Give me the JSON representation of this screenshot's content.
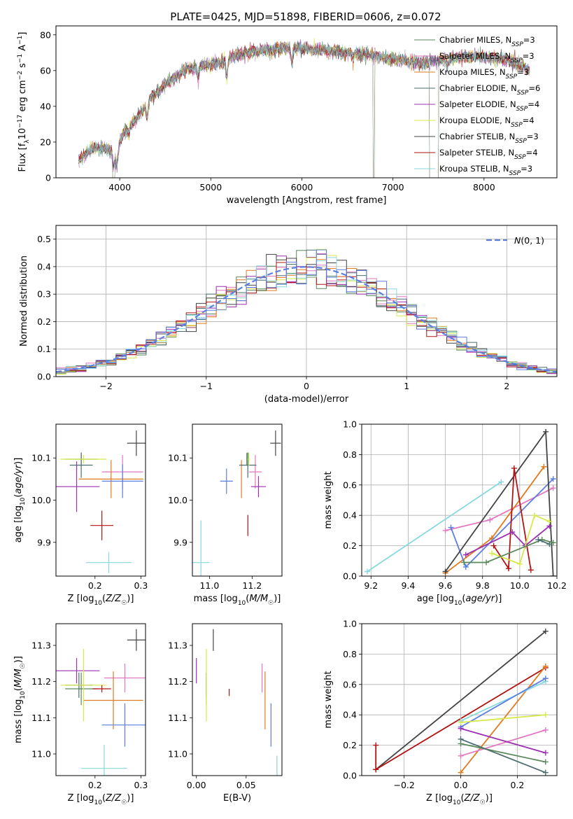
{
  "title": "PLATE=0425, MJD=51898, FIBERID=0606, z=0.072",
  "colors": {
    "Chabrier MILES": "#5a8a5a",
    "Salpeter MILES": "#e377c2",
    "Kroupa MILES": "#e07b1f",
    "Chabrier ELODIE": "#4a6e6e",
    "Salpeter ELODIE": "#9b2fb0",
    "Kroupa ELODIE": "#d7e84a",
    "Chabrier STELIB": "#444444",
    "Salpeter STELIB": "#b21414",
    "Kroupa STELIB": "#88d8e0",
    "Blue": "#5b7fe0",
    "Normal": "#5b7fe0"
  },
  "chart_data": [
    {
      "type": "line",
      "panel": "spectrum",
      "xlabel": "wavelength [Angstrom, rest frame]",
      "ylabel": "Flux [f_λ 10^-17 erg cm^-2 s^-1 A^-1]",
      "xlim": [
        3300,
        8800
      ],
      "ylim": [
        0,
        85
      ],
      "xticks": [
        4000,
        5000,
        6000,
        7000,
        8000
      ],
      "yticks": [
        0,
        20,
        40,
        60,
        80
      ],
      "legend_position": "top-right",
      "legend": [
        {
          "name": "Chabrier MILES",
          "suffix": "3"
        },
        {
          "name": "Salpeter MILES",
          "suffix": "3"
        },
        {
          "name": "Kroupa MILES",
          "suffix": "3"
        },
        {
          "name": "Chabrier ELODIE",
          "suffix": "6"
        },
        {
          "name": "Salpeter ELODIE",
          "suffix": "4"
        },
        {
          "name": "Kroupa ELODIE",
          "suffix": "4"
        },
        {
          "name": "Chabrier STELIB",
          "suffix": "3"
        },
        {
          "name": "Salpeter STELIB",
          "suffix": "4"
        },
        {
          "name": "Kroupa STELIB",
          "suffix": "3"
        }
      ],
      "continuum": [
        [
          3550,
          10
        ],
        [
          3700,
          17
        ],
        [
          3850,
          16
        ],
        [
          3950,
          14
        ],
        [
          4050,
          26
        ],
        [
          4200,
          34
        ],
        [
          4350,
          45
        ],
        [
          4500,
          52
        ],
        [
          4700,
          60
        ],
        [
          4900,
          63
        ],
        [
          5100,
          64
        ],
        [
          5300,
          69
        ],
        [
          5500,
          71
        ],
        [
          5700,
          72
        ],
        [
          5900,
          73
        ],
        [
          6100,
          72
        ],
        [
          6300,
          71
        ],
        [
          6500,
          70
        ],
        [
          6700,
          69
        ],
        [
          6900,
          67
        ],
        [
          7100,
          66
        ],
        [
          7300,
          64
        ],
        [
          7500,
          66
        ],
        [
          7700,
          67
        ],
        [
          7900,
          68
        ],
        [
          8100,
          67
        ],
        [
          8300,
          65
        ],
        [
          8500,
          60
        ]
      ],
      "absorption_features": [
        [
          3934,
          8
        ],
        [
          3968,
          9
        ],
        [
          4102,
          4
        ],
        [
          4300,
          8
        ],
        [
          4861,
          6
        ],
        [
          5175,
          10
        ],
        [
          5890,
          10
        ],
        [
          6563,
          3
        ],
        [
          7600,
          4
        ]
      ],
      "model_cutoffs": [
        [
          3920,
          3950
        ],
        [
          6780,
          6800
        ],
        [
          7400,
          7500
        ]
      ]
    },
    {
      "type": "line",
      "panel": "residuals",
      "xlabel": "(data-model)/error",
      "ylabel": "Normed distribution",
      "xlim": [
        -2.5,
        2.5
      ],
      "ylim": [
        0,
        0.55
      ],
      "xticks": [
        -2,
        -1,
        0,
        1,
        2
      ],
      "yticks": [
        0.0,
        0.1,
        0.2,
        0.3,
        0.4,
        0.5
      ],
      "grid": true,
      "legend_position": "top-right",
      "legend_label": "N(0,1)",
      "bin_width": 0.1
    },
    {
      "type": "scatter",
      "panel": "age-vs-Z",
      "xlabel": "Z [log10(Z/Z_sun)]",
      "ylabel": "age  [log10(age/yr)]",
      "xlim": [
        0.115,
        0.31
      ],
      "ylim": [
        9.82,
        10.18
      ],
      "xticks": [
        0.2,
        0.3
      ],
      "yticks": [
        9.9,
        10.0,
        10.1
      ],
      "points": [
        {
          "series": "Chabrier MILES",
          "x": 0.17,
          "y": 10.097,
          "xe": 0.035,
          "ye": 0.015
        },
        {
          "series": "Salpeter MILES",
          "x": 0.26,
          "y": 10.067,
          "xe": 0.045,
          "ye": 0.04
        },
        {
          "series": "Kroupa MILES",
          "x": 0.235,
          "y": 10.05,
          "xe": 0.07,
          "ye": 0.045
        },
        {
          "series": "Chabrier ELODIE",
          "x": 0.17,
          "y": 10.083,
          "xe": 0.025,
          "ye": 0.03
        },
        {
          "series": "Salpeter ELODIE",
          "x": 0.16,
          "y": 10.032,
          "xe": 0.05,
          "ye": 0.06
        },
        {
          "series": "Kroupa ELODIE",
          "x": 0.175,
          "y": 10.097,
          "xe": 0.05,
          "ye": 0.01
        },
        {
          "series": "Chabrier STELIB",
          "x": 0.29,
          "y": 10.135,
          "xe": 0.02,
          "ye": 0.03
        },
        {
          "series": "Salpeter STELIB",
          "x": 0.215,
          "y": 9.94,
          "xe": 0.025,
          "ye": 0.035
        },
        {
          "series": "Kroupa STELIB",
          "x": 0.23,
          "y": 9.852,
          "xe": 0.05,
          "ye": 0.025
        },
        {
          "series": "Blue",
          "x": 0.26,
          "y": 10.045,
          "xe": 0.045,
          "ye": 0.04
        }
      ]
    },
    {
      "type": "scatter",
      "panel": "age-vs-mass",
      "xlabel": "mass [log10(M/M_sun)]",
      "ylabel": "",
      "xlim": [
        10.92,
        11.34
      ],
      "ylim": [
        9.82,
        10.18
      ],
      "xticks": [
        11.0,
        11.2
      ],
      "yticks": [
        9.9,
        10.0,
        10.1
      ],
      "points": [
        {
          "series": "Chabrier MILES",
          "x": 11.175,
          "y": 10.097,
          "xe": 0.0,
          "ye": 0.015
        },
        {
          "series": "Salpeter MILES",
          "x": 11.215,
          "y": 10.067,
          "xe": 0.03,
          "ye": 0.04
        },
        {
          "series": "Kroupa MILES",
          "x": 11.15,
          "y": 10.05,
          "xe": 0.0,
          "ye": 0.045
        },
        {
          "series": "Chabrier ELODIE",
          "x": 11.18,
          "y": 10.083,
          "xe": 0.04,
          "ye": 0.03
        },
        {
          "series": "Salpeter ELODIE",
          "x": 11.23,
          "y": 10.032,
          "xe": 0.035,
          "ye": 0.025
        },
        {
          "series": "Kroupa ELODIE",
          "x": 11.185,
          "y": 10.097,
          "xe": 0.005,
          "ye": 0.015
        },
        {
          "series": "Chabrier STELIB",
          "x": 11.31,
          "y": 10.135,
          "xe": 0.025,
          "ye": 0.03
        },
        {
          "series": "Salpeter STELIB",
          "x": 11.18,
          "y": 9.94,
          "xe": 0.0,
          "ye": 0.025
        },
        {
          "series": "Kroupa STELIB",
          "x": 10.96,
          "y": 9.852,
          "xe": 0.04,
          "ye": 0.1
        },
        {
          "series": "Blue",
          "x": 11.08,
          "y": 10.045,
          "xe": 0.03,
          "ye": 0.03
        }
      ]
    },
    {
      "type": "line",
      "panel": "mass-weight-vs-age",
      "xlabel": "age  [log10(age/yr)]",
      "ylabel": "mass weight",
      "xlim": [
        9.15,
        10.2
      ],
      "ylim": [
        0,
        1
      ],
      "xticks": [
        9.2,
        9.4,
        9.6,
        9.8,
        10.0,
        10.2
      ],
      "yticks": [
        0.0,
        0.2,
        0.4,
        0.6,
        0.8,
        1.0
      ],
      "grid": true,
      "series": [
        {
          "name": "Kroupa STELIB",
          "points": [
            [
              9.18,
              0.03
            ],
            [
              9.9,
              0.62
            ]
          ]
        },
        {
          "name": "Salpeter MILES",
          "points": [
            [
              9.6,
              0.3
            ],
            [
              9.84,
              0.37
            ],
            [
              10.18,
              0.58
            ]
          ]
        },
        {
          "name": "Kroupa MILES",
          "points": [
            [
              9.6,
              0.02
            ],
            [
              9.85,
              0.25
            ],
            [
              10.13,
              0.72
            ]
          ]
        },
        {
          "name": "Blue",
          "points": [
            [
              9.63,
              0.32
            ],
            [
              9.71,
              0.06
            ],
            [
              10.18,
              0.64
            ]
          ]
        },
        {
          "name": "Chabrier STELIB",
          "points": [
            [
              9.6,
              0.03
            ],
            [
              10.14,
              0.95
            ],
            [
              10.18,
              0.0
            ]
          ]
        },
        {
          "name": "Salpeter STELIB",
          "points": [
            [
              9.86,
              0.2
            ],
            [
              9.94,
              0.05
            ],
            [
              9.97,
              0.71
            ],
            [
              10.06,
              0.04
            ]
          ]
        },
        {
          "name": "Salpeter ELODIE",
          "points": [
            [
              9.71,
              0.14
            ],
            [
              9.96,
              0.29
            ],
            [
              10.03,
              0.2
            ],
            [
              10.16,
              0.33
            ]
          ]
        },
        {
          "name": "Kroupa ELODIE",
          "points": [
            [
              9.85,
              0.15
            ],
            [
              10.0,
              0.08
            ],
            [
              10.08,
              0.4
            ],
            [
              10.16,
              0.36
            ]
          ]
        },
        {
          "name": "Chabrier MILES",
          "points": [
            [
              9.7,
              0.09
            ],
            [
              9.82,
              0.09
            ],
            [
              10.12,
              0.24
            ],
            [
              10.18,
              0.22
            ]
          ]
        },
        {
          "name": "Chabrier ELODIE",
          "points": [
            [
              10.1,
              0.24
            ],
            [
              10.16,
              0.21
            ]
          ]
        }
      ]
    },
    {
      "type": "scatter",
      "panel": "mass-vs-Z",
      "xlabel": "Z [log10(Z/Z_sun)]",
      "ylabel": "mass [log10(M/M_sun)]",
      "xlim": [
        0.115,
        0.31
      ],
      "ylim": [
        10.94,
        11.36
      ],
      "xticks": [
        0.2,
        0.3
      ],
      "yticks": [
        11.0,
        11.1,
        11.2,
        11.3
      ],
      "points": [
        {
          "series": "Chabrier MILES",
          "x": 0.17,
          "y": 11.18,
          "xe": 0.035,
          "ye": 0.045
        },
        {
          "series": "Salpeter MILES",
          "x": 0.265,
          "y": 11.21,
          "xe": 0.045,
          "ye": 0.04
        },
        {
          "series": "Kroupa MILES",
          "x": 0.24,
          "y": 11.148,
          "xe": 0.065,
          "ye": 0.08
        },
        {
          "series": "Chabrier ELODIE",
          "x": 0.165,
          "y": 11.19,
          "xe": 0.03,
          "ye": 0.035
        },
        {
          "series": "Salpeter ELODIE",
          "x": 0.16,
          "y": 11.23,
          "xe": 0.05,
          "ye": 0.035
        },
        {
          "series": "Kroupa ELODIE",
          "x": 0.175,
          "y": 11.19,
          "xe": 0.05,
          "ye": 0.1
        },
        {
          "series": "Chabrier STELIB",
          "x": 0.29,
          "y": 11.315,
          "xe": 0.02,
          "ye": 0.03
        },
        {
          "series": "Salpeter STELIB",
          "x": 0.215,
          "y": 11.18,
          "xe": 0.02,
          "ye": 0.01
        },
        {
          "series": "Kroupa STELIB",
          "x": 0.22,
          "y": 10.96,
          "xe": 0.05,
          "ye": 0.065
        },
        {
          "series": "Blue",
          "x": 0.265,
          "y": 11.08,
          "xe": 0.05,
          "ye": 0.06
        }
      ]
    },
    {
      "type": "scatter",
      "panel": "mass-vs-ebv",
      "xlabel": "E(B-V)",
      "ylabel": "",
      "xlim": [
        -0.004,
        0.086
      ],
      "ylim": [
        10.94,
        11.36
      ],
      "xticks": [
        0.0,
        0.05
      ],
      "yticks": [
        11.0,
        11.1,
        11.2,
        11.3
      ],
      "points": [
        {
          "series": "Chabrier MILES",
          "x": 0.01,
          "y": 11.18,
          "ye": 0.045
        },
        {
          "series": "Salpeter MILES",
          "x": 0.066,
          "y": 11.21,
          "ye": 0.04
        },
        {
          "series": "Kroupa MILES",
          "x": 0.069,
          "y": 11.148,
          "ye": 0.08
        },
        {
          "series": "Chabrier ELODIE",
          "x": 0.01,
          "y": 11.19,
          "ye": 0.035
        },
        {
          "series": "Salpeter ELODIE",
          "x": 0.0,
          "y": 11.23,
          "ye": 0.035
        },
        {
          "series": "Kroupa ELODIE",
          "x": 0.01,
          "y": 11.19,
          "ye": 0.1
        },
        {
          "series": "Chabrier STELIB",
          "x": 0.017,
          "y": 11.315,
          "ye": 0.03
        },
        {
          "series": "Salpeter STELIB",
          "x": 0.033,
          "y": 11.17,
          "ye": 0.01
        },
        {
          "series": "Kroupa STELIB",
          "x": 0.081,
          "y": 10.96,
          "ye": 0.035
        },
        {
          "series": "Blue",
          "x": 0.075,
          "y": 11.08,
          "ye": 0.06
        }
      ]
    },
    {
      "type": "line",
      "panel": "mass-weight-vs-Z",
      "xlabel": "Z [log10(Z/Z_sun)]",
      "ylabel": "mass weight",
      "xlim": [
        -0.35,
        0.34
      ],
      "ylim": [
        0,
        1
      ],
      "xticks": [
        -0.2,
        0.0,
        0.2
      ],
      "yticks": [
        0.0,
        0.2,
        0.4,
        0.6,
        0.8,
        1.0
      ],
      "grid": true,
      "series": [
        {
          "name": "Chabrier STELIB",
          "points": [
            [
              -0.3,
              0.04
            ],
            [
              0.3,
              0.95
            ]
          ]
        },
        {
          "name": "Salpeter STELIB",
          "points": [
            [
              -0.3,
              0.2
            ],
            [
              -0.3,
              0.04
            ],
            [
              0.3,
              0.71
            ]
          ]
        },
        {
          "name": "Kroupa MILES",
          "points": [
            [
              0.0,
              0.02
            ],
            [
              0.3,
              0.72
            ]
          ]
        },
        {
          "name": "Kroupa STELIB",
          "points": [
            [
              0.0,
              0.36
            ],
            [
              0.3,
              0.62
            ]
          ]
        },
        {
          "name": "Blue",
          "points": [
            [
              0.0,
              0.32
            ],
            [
              0.3,
              0.64
            ]
          ]
        },
        {
          "name": "Kroupa ELODIE",
          "points": [
            [
              0.0,
              0.35
            ],
            [
              0.3,
              0.4
            ]
          ]
        },
        {
          "name": "Salpeter MILES",
          "points": [
            [
              0.0,
              0.13
            ],
            [
              0.3,
              0.3
            ]
          ]
        },
        {
          "name": "Salpeter ELODIE",
          "points": [
            [
              0.0,
              0.31
            ],
            [
              0.3,
              0.15
            ]
          ]
        },
        {
          "name": "Chabrier MILES",
          "points": [
            [
              0.0,
              0.21
            ],
            [
              0.3,
              0.09
            ]
          ]
        },
        {
          "name": "Chabrier ELODIE",
          "points": [
            [
              0.0,
              0.24
            ],
            [
              0.3,
              0.02
            ]
          ]
        }
      ]
    }
  ]
}
